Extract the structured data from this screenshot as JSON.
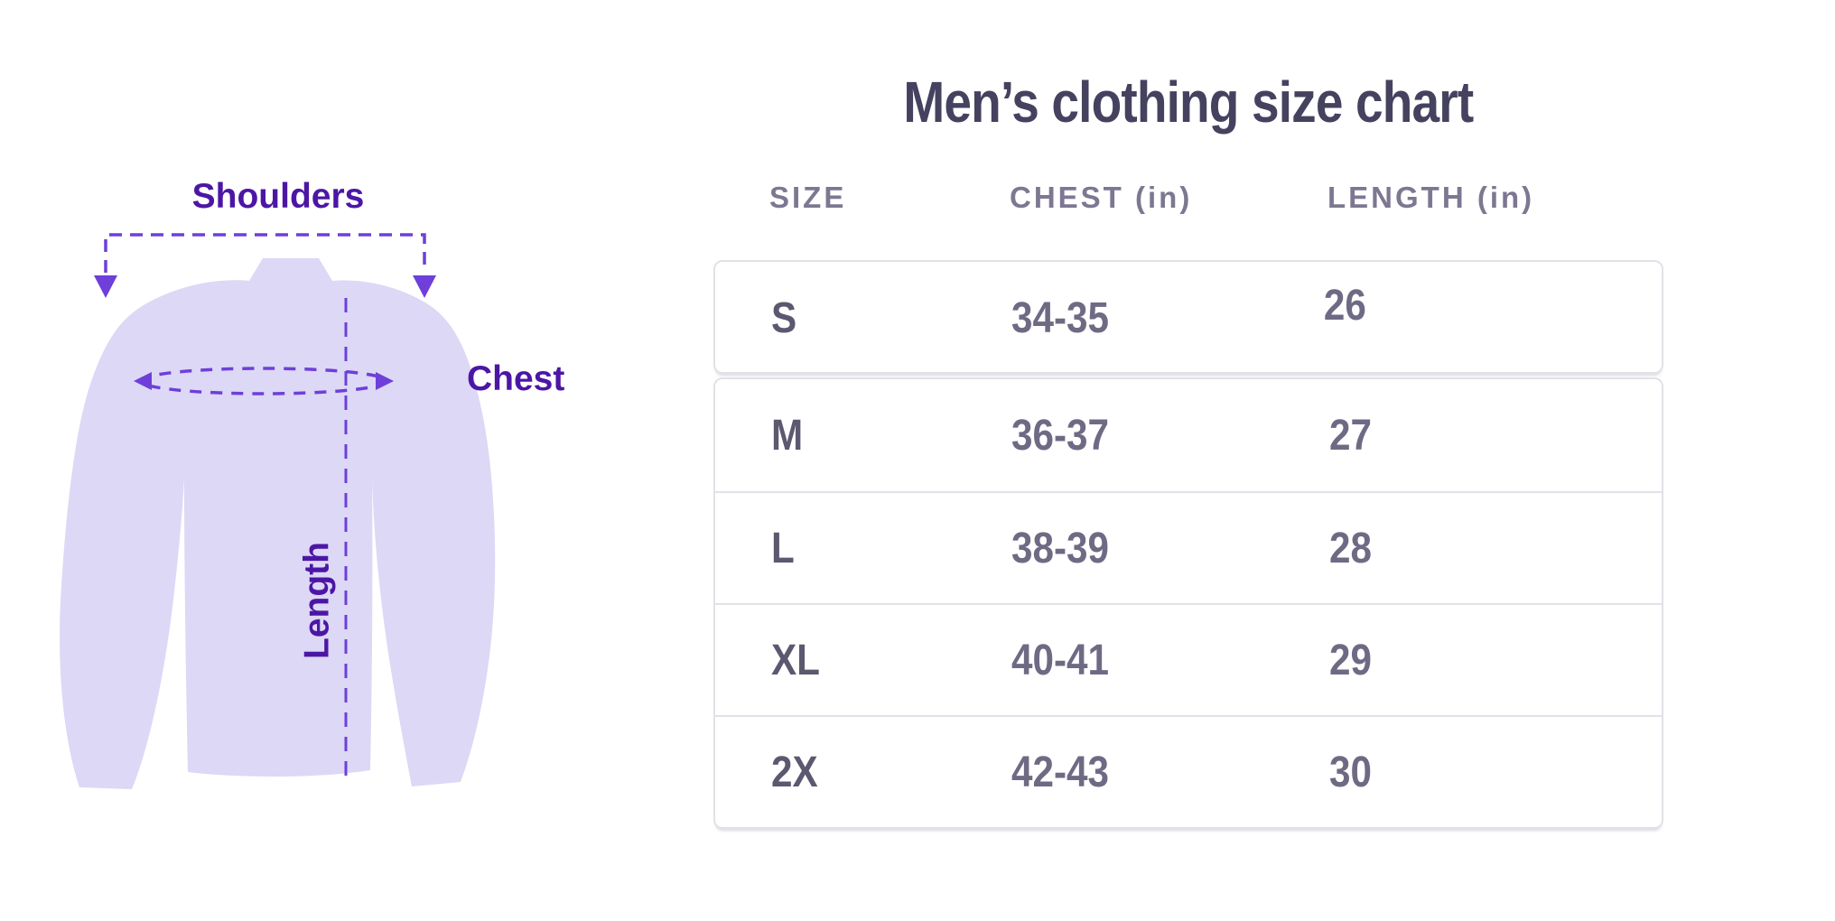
{
  "title": "Men’s clothing size chart",
  "diagram": {
    "shoulders_label": "Shoulders",
    "chest_label": "Chest",
    "length_label": "Length",
    "colors": {
      "shirt_fill": "#dcd8f6",
      "dash_stroke": "#6e3fd9",
      "label_text": "#4c16a5"
    }
  },
  "table": {
    "headers": [
      "SIZE",
      "CHEST (in)",
      "LENGTH (in)"
    ],
    "rows": [
      {
        "size": "S",
        "chest": "34-35",
        "length": "26"
      },
      {
        "size": "M",
        "chest": "36-37",
        "length": "27"
      },
      {
        "size": "L",
        "chest": "38-39",
        "length": "28"
      },
      {
        "size": "XL",
        "chest": "40-41",
        "length": "29"
      },
      {
        "size": "2X",
        "chest": "42-43",
        "length": "30"
      }
    ],
    "colors": {
      "title_text": "#45425f",
      "header_text": "#7d7791",
      "cell_text": "#6f6a84",
      "size_text": "#5c5870",
      "border": "#e3e1e7"
    }
  }
}
